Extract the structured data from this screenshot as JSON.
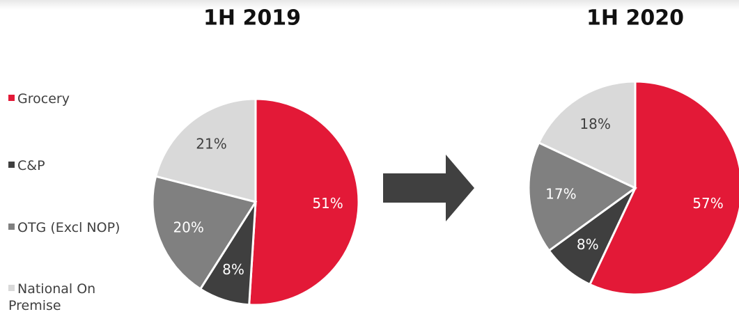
{
  "chart_data": [
    {
      "type": "pie",
      "title": "1H 2019",
      "categories": [
        "Grocery",
        "C&P",
        "OTG (Excl NOP)",
        "National On Premise"
      ],
      "values": [
        51,
        8,
        20,
        21
      ],
      "value_labels": [
        "51%",
        "8%",
        "20%",
        "21%"
      ],
      "colors": [
        "#e31937",
        "#3f3f3f",
        "#808080",
        "#d9d9d9"
      ],
      "legend": "left"
    },
    {
      "type": "pie",
      "title": "1H 2020",
      "categories": [
        "Grocery",
        "C&P",
        "OTG (Excl NOP)",
        "National On Premise"
      ],
      "values": [
        57,
        8,
        17,
        18
      ],
      "value_labels": [
        "57%",
        "8%",
        "17%",
        "18%"
      ],
      "colors": [
        "#e31937",
        "#3f3f3f",
        "#808080",
        "#d9d9d9"
      ]
    }
  ]
}
